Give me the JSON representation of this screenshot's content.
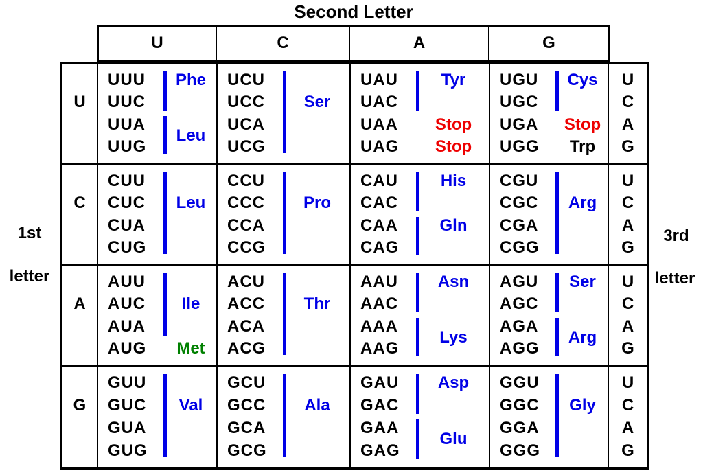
{
  "title": "Second Letter",
  "left_label": {
    "line1": "1st",
    "line2": "letter"
  },
  "right_label": {
    "line1": "3rd",
    "line2": "letter"
  },
  "col_headers": [
    "U",
    "C",
    "A",
    "G"
  ],
  "colors": {
    "amino_blue": "#0000e6",
    "stop_red": "#ee0000",
    "met_green": "#008000",
    "text_black": "#000000",
    "background": "#ffffff"
  },
  "grid": {
    "rows": [
      {
        "first_letter": "U",
        "cells": [
          {
            "codons": [
              "UUU",
              "UUC",
              "UUA",
              "UUG"
            ],
            "labels": [
              {
                "text": "Phe",
                "color": "blue"
              },
              {
                "text": "Leu",
                "color": "blue"
              }
            ]
          },
          {
            "codons": [
              "UCU",
              "UCC",
              "UCA",
              "UCG"
            ],
            "labels": [
              {
                "text": "Ser",
                "color": "blue"
              }
            ]
          },
          {
            "codons": [
              "UAU",
              "UAC",
              "UAA",
              "UAG"
            ],
            "labels": [
              {
                "text": "Tyr",
                "color": "blue"
              },
              {
                "text": "Stop",
                "color": "red"
              },
              {
                "text": "Stop",
                "color": "red"
              }
            ]
          },
          {
            "codons": [
              "UGU",
              "UGC",
              "UGA",
              "UGG"
            ],
            "labels": [
              {
                "text": "Cys",
                "color": "blue"
              },
              {
                "text": "Stop",
                "color": "red"
              },
              {
                "text": "Trp",
                "color": "black"
              }
            ]
          }
        ],
        "third_letters": [
          "U",
          "C",
          "A",
          "G"
        ]
      },
      {
        "first_letter": "C",
        "cells": [
          {
            "codons": [
              "CUU",
              "CUC",
              "CUA",
              "CUG"
            ],
            "labels": [
              {
                "text": "Leu",
                "color": "blue"
              }
            ]
          },
          {
            "codons": [
              "CCU",
              "CCC",
              "CCA",
              "CCG"
            ],
            "labels": [
              {
                "text": "Pro",
                "color": "blue"
              }
            ]
          },
          {
            "codons": [
              "CAU",
              "CAC",
              "CAA",
              "CAG"
            ],
            "labels": [
              {
                "text": "His",
                "color": "blue"
              },
              {
                "text": "Gln",
                "color": "blue"
              }
            ]
          },
          {
            "codons": [
              "CGU",
              "CGC",
              "CGA",
              "CGG"
            ],
            "labels": [
              {
                "text": "Arg",
                "color": "blue"
              }
            ]
          }
        ],
        "third_letters": [
          "U",
          "C",
          "A",
          "G"
        ]
      },
      {
        "first_letter": "A",
        "cells": [
          {
            "codons": [
              "AUU",
              "AUC",
              "AUA",
              "AUG"
            ],
            "labels": [
              {
                "text": "Ile",
                "color": "blue"
              },
              {
                "text": "Met",
                "color": "green"
              }
            ]
          },
          {
            "codons": [
              "ACU",
              "ACC",
              "ACA",
              "ACG"
            ],
            "labels": [
              {
                "text": "Thr",
                "color": "blue"
              }
            ]
          },
          {
            "codons": [
              "AAU",
              "AAC",
              "AAA",
              "AAG"
            ],
            "labels": [
              {
                "text": "Asn",
                "color": "blue"
              },
              {
                "text": "Lys",
                "color": "blue"
              }
            ]
          },
          {
            "codons": [
              "AGU",
              "AGC",
              "AGA",
              "AGG"
            ],
            "labels": [
              {
                "text": "Ser",
                "color": "blue"
              },
              {
                "text": "Arg",
                "color": "blue"
              }
            ]
          }
        ],
        "third_letters": [
          "U",
          "C",
          "A",
          "G"
        ]
      },
      {
        "first_letter": "G",
        "cells": [
          {
            "codons": [
              "GUU",
              "GUC",
              "GUA",
              "GUG"
            ],
            "labels": [
              {
                "text": "Val",
                "color": "blue"
              }
            ]
          },
          {
            "codons": [
              "GCU",
              "GCC",
              "GCA",
              "GCG"
            ],
            "labels": [
              {
                "text": "Ala",
                "color": "blue"
              }
            ]
          },
          {
            "codons": [
              "GAU",
              "GAC",
              "GAA",
              "GAG"
            ],
            "labels": [
              {
                "text": "Asp",
                "color": "blue"
              },
              {
                "text": "Glu",
                "color": "blue"
              }
            ]
          },
          {
            "codons": [
              "GGU",
              "GGC",
              "GGA",
              "GGG"
            ],
            "labels": [
              {
                "text": "Gly",
                "color": "blue"
              }
            ]
          }
        ],
        "third_letters": [
          "U",
          "C",
          "A",
          "G"
        ]
      }
    ]
  }
}
